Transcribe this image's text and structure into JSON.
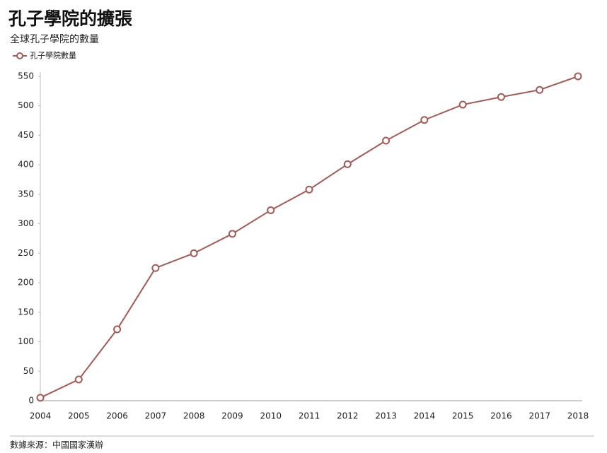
{
  "chart_data": {
    "type": "line",
    "title": "孔子學院的擴張",
    "subtitle": "全球孔子學院的數量",
    "source": "數據來源：中國國家漢辦",
    "categories": [
      "2004",
      "2005",
      "2006",
      "2007",
      "2008",
      "2009",
      "2010",
      "2011",
      "2012",
      "2013",
      "2014",
      "2015",
      "2016",
      "2017",
      "2018"
    ],
    "series": [
      {
        "name": "孔子學院數量",
        "color": "#a65955",
        "values": [
          5,
          36,
          121,
          225,
          250,
          283,
          323,
          358,
          401,
          441,
          476,
          502,
          515,
          527,
          550
        ]
      }
    ],
    "ylim": [
      0,
      550
    ],
    "yticks": [
      0,
      50,
      100,
      150,
      200,
      250,
      300,
      350,
      400,
      450,
      500,
      550
    ],
    "grid": false
  }
}
